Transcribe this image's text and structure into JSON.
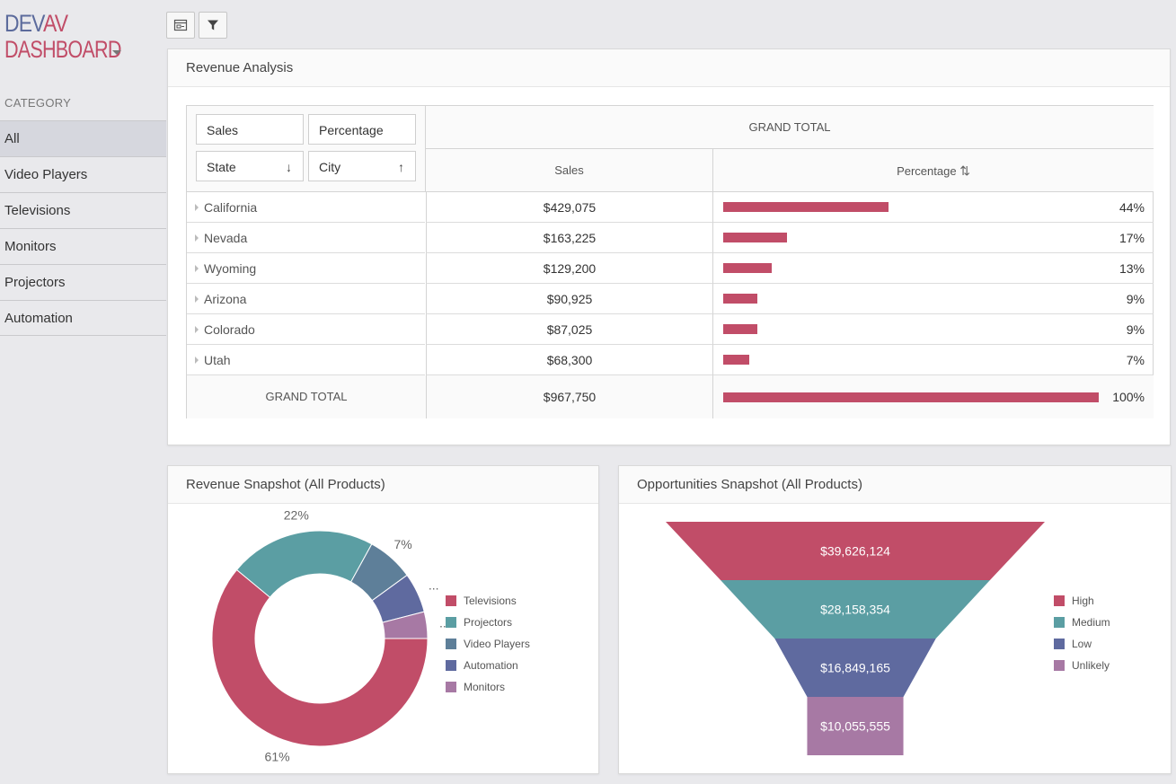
{
  "logo": {
    "dev": "DEV",
    "av": "AV",
    "dashboard": "DASHBOARD"
  },
  "sidebar": {
    "category_label": "CATEGORY",
    "items": [
      {
        "label": "All",
        "active": true
      },
      {
        "label": "Video Players"
      },
      {
        "label": "Televisions"
      },
      {
        "label": "Monitors"
      },
      {
        "label": "Projectors"
      },
      {
        "label": "Automation"
      }
    ]
  },
  "toolbar": {
    "layout_icon": "layout-icon",
    "filter_icon": "filter-icon"
  },
  "revenue_analysis": {
    "title": "Revenue Analysis",
    "data_fields": [
      "Sales",
      "Percentage"
    ],
    "row_fields": [
      {
        "label": "State",
        "sort": "↓"
      },
      {
        "label": "City",
        "sort": "↑"
      }
    ],
    "grand_total_header": "GRAND TOTAL",
    "col_sales": "Sales",
    "col_percentage": "Percentage",
    "sort_icon": "⇅",
    "rows": [
      {
        "state": "California",
        "sales": "$429,075",
        "pct_label": "44%",
        "pct": 0.44
      },
      {
        "state": "Nevada",
        "sales": "$163,225",
        "pct_label": "17%",
        "pct": 0.17
      },
      {
        "state": "Wyoming",
        "sales": "$129,200",
        "pct_label": "13%",
        "pct": 0.13
      },
      {
        "state": "Arizona",
        "sales": "$90,925",
        "pct_label": "9%",
        "pct": 0.09
      },
      {
        "state": "Colorado",
        "sales": "$87,025",
        "pct_label": "9%",
        "pct": 0.09
      },
      {
        "state": "Utah",
        "sales": "$68,300",
        "pct_label": "7%",
        "pct": 0.07
      }
    ],
    "grand_total": {
      "label": "GRAND TOTAL",
      "sales": "$967,750",
      "pct_label": "100%",
      "pct": 1.0
    }
  },
  "revenue_snapshot": {
    "title": "Revenue Snapshot (All Products)",
    "labels": {
      "televisions": "61%",
      "projectors": "22%",
      "video_players": "7%",
      "automation": "...",
      "monitors": "..."
    }
  },
  "opportunities_snapshot": {
    "title": "Opportunities Snapshot (All Products)"
  },
  "chart_data": [
    {
      "type": "pie",
      "title": "Revenue Snapshot (All Products)",
      "donut": true,
      "legend_position": "right",
      "series": [
        {
          "name": "Televisions",
          "value": 61,
          "color": "#c14d68"
        },
        {
          "name": "Projectors",
          "value": 22,
          "color": "#5b9ea3"
        },
        {
          "name": "Video Players",
          "value": 7,
          "color": "#5e7f99"
        },
        {
          "name": "Automation",
          "value": 6,
          "color": "#5f6a9f"
        },
        {
          "name": "Monitors",
          "value": 4,
          "color": "#a779a4"
        }
      ]
    },
    {
      "type": "funnel",
      "title": "Opportunities Snapshot (All Products)",
      "legend_position": "right",
      "series": [
        {
          "name": "High",
          "value": 39626124,
          "label": "$39,626,124",
          "color": "#c14d68"
        },
        {
          "name": "Medium",
          "value": 28158354,
          "label": "$28,158,354",
          "color": "#5b9ea3"
        },
        {
          "name": "Low",
          "value": 16849165,
          "label": "$16,849,165",
          "color": "#5f6a9f"
        },
        {
          "name": "Unlikely",
          "value": 10055555,
          "label": "$10,055,555",
          "color": "#a779a4"
        }
      ]
    }
  ]
}
